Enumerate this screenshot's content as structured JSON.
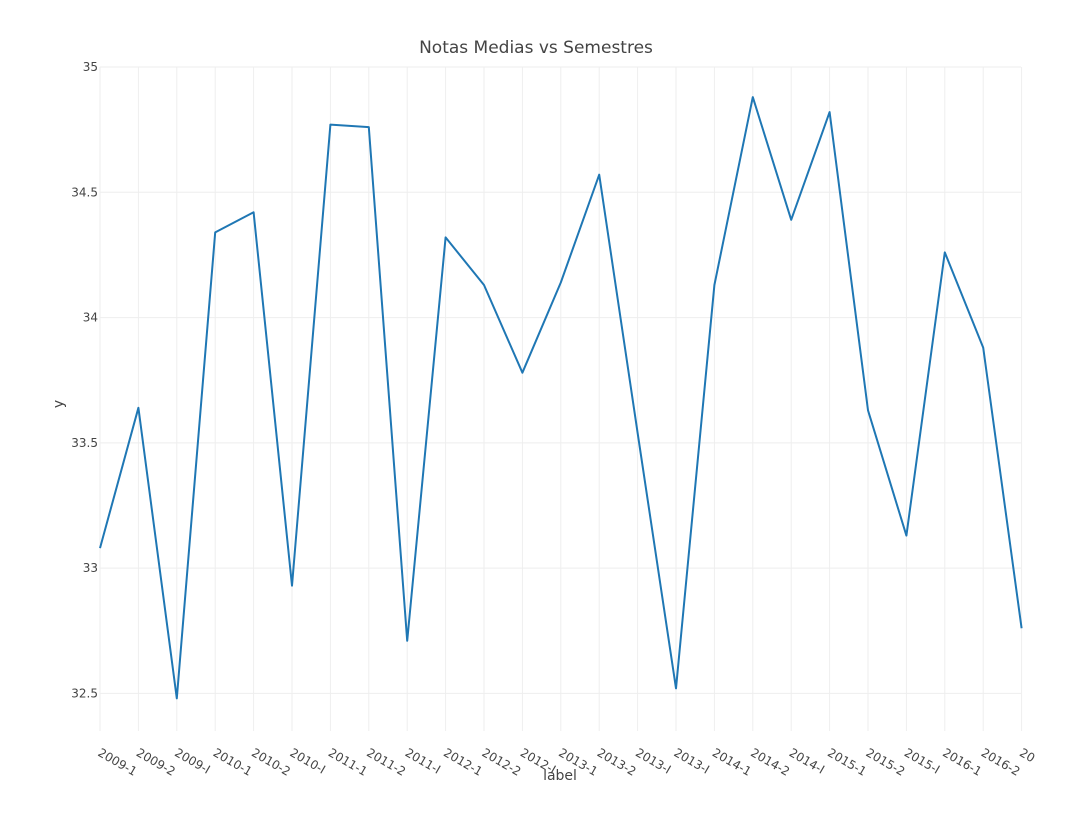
{
  "chart_data": {
    "type": "line",
    "title": "Notas Medias vs Semestres",
    "xlabel": "label",
    "ylabel": "y",
    "ylim": [
      32.35,
      35
    ],
    "yticks": [
      32.5,
      33,
      33.5,
      34,
      34.5,
      35
    ],
    "ytick_labels": [
      "32.5",
      "33",
      "33.5",
      "34",
      "34.5",
      "35"
    ],
    "grid": true,
    "legend": "none",
    "categories": [
      "2009-1",
      "2009-2",
      "2009-I",
      "2010-1",
      "2010-2",
      "2010-I",
      "2011-1",
      "2011-2",
      "2011-I",
      "2012-1",
      "2012-2",
      "2012-I",
      "2013-1",
      "2013-2",
      "2013-I",
      "2013-I",
      "2014-1",
      "2014-2",
      "2014-I",
      "2015-1",
      "2015-2",
      "2015-I",
      "2016-1",
      "2016-2",
      "20"
    ],
    "series": [
      {
        "color": "#1f77b4",
        "values": [
          33.08,
          33.64,
          32.48,
          34.34,
          34.42,
          32.93,
          34.77,
          34.76,
          32.71,
          34.32,
          34.13,
          33.78,
          34.14,
          34.57,
          33.54,
          32.52,
          34.13,
          34.88,
          34.39,
          34.82,
          33.63,
          33.13,
          34.26,
          33.88,
          32.76
        ]
      }
    ]
  }
}
